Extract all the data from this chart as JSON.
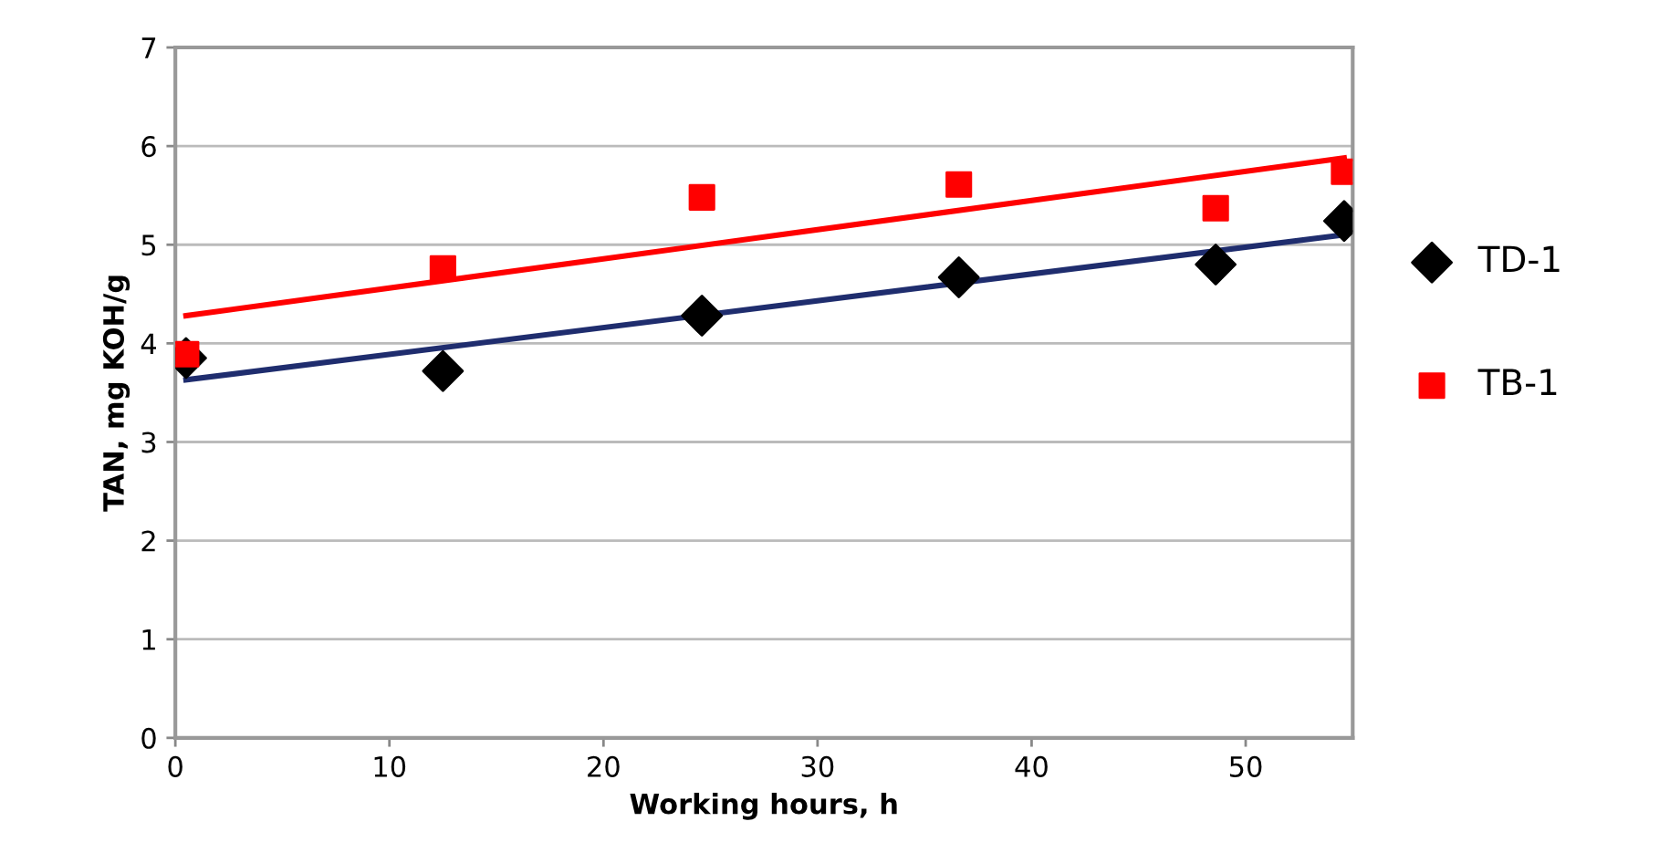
{
  "chart_data": {
    "type": "scatter",
    "xlabel": "Working hours, h",
    "ylabel": "TAN, mg KOH/g",
    "xlim": [
      0,
      55
    ],
    "xticks": [
      0,
      10,
      20,
      30,
      40,
      50
    ],
    "ylim": [
      0,
      7
    ],
    "yticks": [
      0,
      1,
      2,
      3,
      4,
      5,
      6,
      7
    ],
    "grid": "y",
    "legend": "right",
    "series": [
      {
        "name": "TD-1",
        "marker": "diamond",
        "color": "#000000",
        "x": [
          0.5,
          12.5,
          24.6,
          36.6,
          48.6,
          54.6
        ],
        "values": [
          3.85,
          3.72,
          4.28,
          4.67,
          4.8,
          5.24
        ]
      },
      {
        "name": "TB-1",
        "marker": "square",
        "color": "#ff0000",
        "x": [
          0.5,
          12.5,
          24.6,
          36.6,
          48.6,
          54.6
        ],
        "values": [
          3.89,
          4.76,
          5.48,
          5.61,
          5.37,
          5.74
        ]
      },
      {
        "type": "line",
        "color": "#1f2d6e",
        "x": [
          0.5,
          54.6
        ],
        "values": [
          3.63,
          5.1
        ]
      },
      {
        "type": "line",
        "color": "#ff0000",
        "x": [
          0.5,
          54.6
        ],
        "values": [
          4.28,
          5.88
        ]
      }
    ]
  }
}
